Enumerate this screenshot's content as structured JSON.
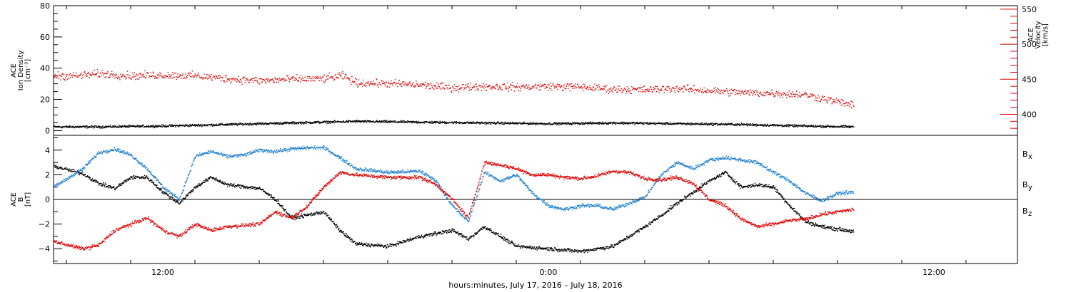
{
  "chart_data": [
    {
      "type": "scatter",
      "xlabel": "hours:minutes, July 17, 2016 – July 18, 2016",
      "x_tick_labels": [
        "12:00",
        "0:00",
        "12:00"
      ],
      "x_tick_hours": [
        12,
        24,
        36
      ],
      "xlim_hours": [
        8.6,
        38.6
      ],
      "data_end_hour": 33.5,
      "left_axis": {
        "label_lines": [
          "ACE",
          "Ion Density",
          "[cm⁻³]"
        ],
        "ylim": [
          -3,
          80
        ],
        "ticks": [
          0,
          20,
          40,
          60,
          80
        ],
        "tick_labels": [
          "0",
          "20",
          "40",
          "60",
          "80"
        ]
      },
      "right_axis": {
        "label_lines": [
          "ACE",
          "Velocity",
          "[km/s]"
        ],
        "ylim": [
          370,
          555
        ],
        "ticks": [
          400,
          450,
          500,
          550
        ],
        "tick_labels": [
          "400",
          "450",
          "500",
          "550"
        ],
        "color": "#e00000"
      },
      "series": [
        {
          "color": "#000000",
          "axis": "left",
          "points": [
            [
              8.6,
              2.5
            ],
            [
              10,
              2.5
            ],
            [
              12,
              3
            ],
            [
              14,
              4
            ],
            [
              16,
              5
            ],
            [
              18,
              6
            ],
            [
              20,
              5.5
            ],
            [
              22,
              5
            ],
            [
              24,
              4.5
            ],
            [
              26,
              5
            ],
            [
              28,
              4.5
            ],
            [
              30,
              4
            ],
            [
              32,
              3
            ],
            [
              33.5,
              2.5
            ]
          ]
        },
        {
          "color": "#e00000",
          "axis": "right",
          "points": [
            [
              8.6,
              455
            ],
            [
              9.3,
              455
            ],
            [
              10,
              458
            ],
            [
              11,
              455
            ],
            [
              12,
              456
            ],
            [
              13,
              455
            ],
            [
              14,
              451
            ],
            [
              15,
              448
            ],
            [
              16,
              450
            ],
            [
              17,
              451
            ],
            [
              17.6,
              455
            ],
            [
              18,
              445
            ],
            [
              19,
              444
            ],
            [
              20,
              442
            ],
            [
              21,
              438
            ],
            [
              22,
              440
            ],
            [
              23,
              439
            ],
            [
              24,
              440
            ],
            [
              25,
              439
            ],
            [
              26,
              436
            ],
            [
              27,
              435
            ],
            [
              28,
              437
            ],
            [
              29,
              434
            ],
            [
              30,
              431
            ],
            [
              31,
              430
            ],
            [
              32,
              428
            ],
            [
              33,
              418
            ],
            [
              33.5,
              413
            ]
          ]
        }
      ]
    },
    {
      "type": "scatter",
      "xlabel": "hours:minutes, July 17, 2016 – July 18, 2016",
      "left_axis": {
        "label_lines": [
          "ACE",
          "B",
          "[nT]"
        ],
        "ylim": [
          -5.2,
          5.2
        ],
        "ticks": [
          -4,
          -2,
          0,
          2,
          4
        ],
        "tick_labels": [
          "−4",
          "−2",
          "0",
          "2",
          "4"
        ]
      },
      "zero_line": true,
      "series": [
        {
          "name": "Bx",
          "label_main": "B",
          "label_sub": "x",
          "color": "#000000",
          "points": [
            [
              8.6,
              2.7
            ],
            [
              9.5,
              2.1
            ],
            [
              10,
              1.3
            ],
            [
              10.5,
              0.9
            ],
            [
              11,
              1.8
            ],
            [
              11.5,
              1.8
            ],
            [
              12,
              0.6
            ],
            [
              12.5,
              -0.3
            ],
            [
              13,
              1.0
            ],
            [
              13.5,
              1.8
            ],
            [
              14,
              1.2
            ],
            [
              15,
              0.9
            ],
            [
              15.5,
              0
            ],
            [
              16,
              -1.5
            ],
            [
              17,
              -1.0
            ],
            [
              17.5,
              -2.5
            ],
            [
              18,
              -3.6
            ],
            [
              19,
              -3.8
            ],
            [
              20,
              -3.0
            ],
            [
              21,
              -2.5
            ],
            [
              21.5,
              -3.2
            ],
            [
              22,
              -2.2
            ],
            [
              23,
              -3.8
            ],
            [
              24,
              -4.0
            ],
            [
              25,
              -4.2
            ],
            [
              26,
              -3.8
            ],
            [
              26.5,
              -3.0
            ],
            [
              27,
              -2.2
            ],
            [
              27.5,
              -1.3
            ],
            [
              28,
              -0.3
            ],
            [
              29,
              1.5
            ],
            [
              29.5,
              2.2
            ],
            [
              30,
              1.0
            ],
            [
              30.5,
              1.2
            ],
            [
              31,
              1.0
            ],
            [
              31.5,
              -0.5
            ],
            [
              32,
              -1.8
            ],
            [
              32.5,
              -2.2
            ],
            [
              33.5,
              -2.6
            ]
          ]
        },
        {
          "name": "By",
          "label_main": "B",
          "label_sub": "y",
          "color": "#1e7fd0",
          "points": [
            [
              8.6,
              1.0
            ],
            [
              9.5,
              2.5
            ],
            [
              10,
              3.8
            ],
            [
              10.5,
              4.1
            ],
            [
              11,
              3.6
            ],
            [
              11.5,
              2.5
            ],
            [
              12,
              1.0
            ],
            [
              12.5,
              0
            ],
            [
              13,
              3.5
            ],
            [
              13.5,
              3.9
            ],
            [
              14,
              3.5
            ],
            [
              14.5,
              3.6
            ],
            [
              15,
              4.0
            ],
            [
              15.5,
              3.9
            ],
            [
              16,
              4.1
            ],
            [
              16.5,
              4.2
            ],
            [
              17,
              4.2
            ],
            [
              17.5,
              3.4
            ],
            [
              18,
              2.5
            ],
            [
              19,
              2.2
            ],
            [
              20,
              2.3
            ],
            [
              20.5,
              1.5
            ],
            [
              21,
              -0.5
            ],
            [
              21.5,
              -1.8
            ],
            [
              22,
              2.2
            ],
            [
              22.5,
              1.5
            ],
            [
              23,
              2.0
            ],
            [
              23.5,
              0.5
            ],
            [
              24,
              -0.5
            ],
            [
              24.5,
              -0.8
            ],
            [
              25,
              -0.5
            ],
            [
              25.5,
              -0.5
            ],
            [
              26,
              -0.8
            ],
            [
              26.5,
              -0.3
            ],
            [
              27,
              0.2
            ],
            [
              27.5,
              2.0
            ],
            [
              28,
              3.0
            ],
            [
              28.5,
              2.5
            ],
            [
              29,
              3.2
            ],
            [
              29.5,
              3.4
            ],
            [
              30,
              3.2
            ],
            [
              30.5,
              3.0
            ],
            [
              31,
              2.2
            ],
            [
              31.5,
              1.5
            ],
            [
              32,
              0.5
            ],
            [
              32.5,
              -0.1
            ],
            [
              33,
              0.5
            ],
            [
              33.5,
              0.6
            ]
          ]
        },
        {
          "name": "Bz",
          "label_main": "B",
          "label_sub": "z",
          "color": "#e00000",
          "points": [
            [
              8.6,
              -3.4
            ],
            [
              9.5,
              -4.0
            ],
            [
              10,
              -3.7
            ],
            [
              10.5,
              -2.5
            ],
            [
              11,
              -2.0
            ],
            [
              11.5,
              -1.5
            ],
            [
              12,
              -2.5
            ],
            [
              12.5,
              -3.0
            ],
            [
              13,
              -2.0
            ],
            [
              13.5,
              -2.5
            ],
            [
              14,
              -2.2
            ],
            [
              15,
              -2.0
            ],
            [
              15.5,
              -1.0
            ],
            [
              16,
              -1.5
            ],
            [
              16.5,
              -0.5
            ],
            [
              17,
              1.0
            ],
            [
              17.5,
              2.2
            ],
            [
              18,
              2.0
            ],
            [
              19,
              1.8
            ],
            [
              20,
              1.8
            ],
            [
              20.5,
              1.2
            ],
            [
              21,
              0
            ],
            [
              21.5,
              -1.5
            ],
            [
              22,
              3.0
            ],
            [
              22.5,
              2.8
            ],
            [
              23,
              2.5
            ],
            [
              23.5,
              2.0
            ],
            [
              24,
              2.0
            ],
            [
              24.5,
              1.8
            ],
            [
              25,
              1.7
            ],
            [
              25.5,
              1.9
            ],
            [
              26,
              2.3
            ],
            [
              26.5,
              2.2
            ],
            [
              27,
              1.7
            ],
            [
              27.5,
              1.6
            ],
            [
              28,
              1.8
            ],
            [
              28.5,
              1.3
            ],
            [
              29,
              0
            ],
            [
              29.5,
              -0.5
            ],
            [
              30,
              -1.6
            ],
            [
              30.5,
              -2.2
            ],
            [
              31,
              -2.0
            ],
            [
              31.5,
              -1.7
            ],
            [
              32,
              -1.6
            ],
            [
              32.5,
              -1.2
            ],
            [
              33,
              -1.0
            ],
            [
              33.5,
              -0.8
            ]
          ]
        }
      ]
    }
  ]
}
